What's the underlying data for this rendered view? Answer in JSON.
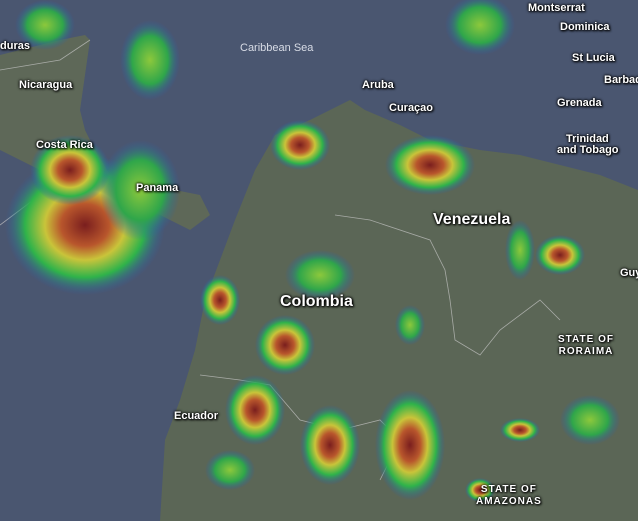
{
  "colors": {
    "ocean": "#4a5670",
    "land": "#5b6656",
    "radar_light": "#2fb34a",
    "radar_mid": "#c8c83a",
    "radar_heavy": "#8e2a24"
  },
  "labels": {
    "honduras": "duras",
    "nicaragua": "Nicaragua",
    "costa_rica": "Costa Rica",
    "panama": "Panama",
    "caribbean_sea": "Caribbean Sea",
    "aruba": "Aruba",
    "curacao": "Curaçao",
    "montserrat": "Montserrat",
    "dominica": "Dominica",
    "st_lucia": "St Lucia",
    "barbados": "Barbad",
    "grenada": "Grenada",
    "trinidad": "Trinidad",
    "tobago": "and Tobago",
    "venezuela": "Venezuela",
    "colombia": "Colombia",
    "ecuador": "Ecuador",
    "guyana": "Guy",
    "roraima_1": "STATE OF",
    "roraima_2": "RORAIMA",
    "amazonas_1": "STATE OF",
    "amazonas_2": "AMAZONAS"
  }
}
